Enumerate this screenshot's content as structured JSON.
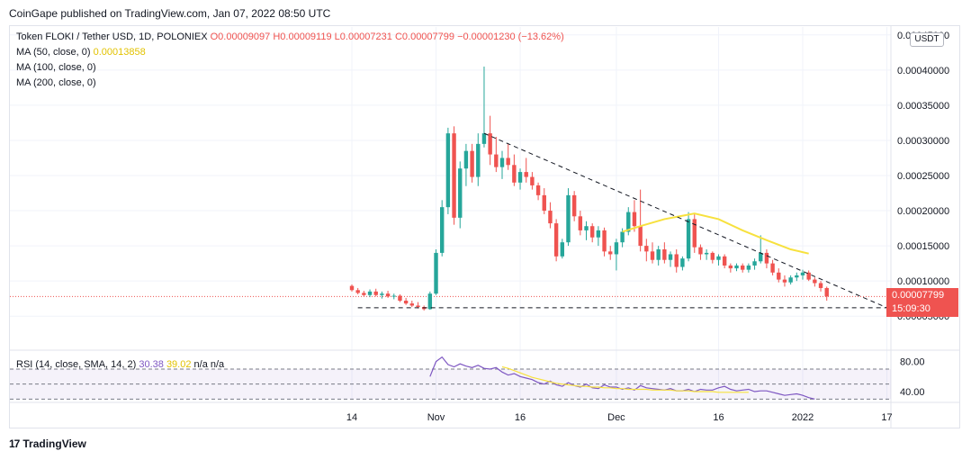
{
  "header": {
    "published": "CoinGape published on TradingView.com, Jan 07, 2022 08:50 UTC"
  },
  "legend": {
    "symbol": "Token FLOKI / Tether USD, 1D, POLONIEX",
    "open": "O0.00009097",
    "high": "H0.00009119",
    "low": "L0.00007231",
    "close": "C0.00007799",
    "change": "−0.00001230 (−13.62%)",
    "ma50_label": "MA (50, close, 0)",
    "ma50_value": "0.00013858",
    "ma100_label": "MA (100, close, 0)",
    "ma200_label": "MA (200, close, 0)",
    "rsi_label": "RSI (14, close, SMA, 14, 2)",
    "rsi_value": "30.38",
    "rsi_sma_value": "39.02",
    "rsi_na": "n/a  n/a"
  },
  "currency_button": "USDT",
  "price_tag": {
    "price": "0.00007799",
    "countdown": "15:09:30"
  },
  "footer": {
    "brand": "TradingView",
    "logo_mark": "17"
  },
  "colors": {
    "up": "#26a69a",
    "down": "#ef5350",
    "ma50": "#f7e13e",
    "rsi": "#7e57c2",
    "rsi_sma": "#f7e13e"
  },
  "chart_data": [
    {
      "type": "candlestick",
      "title": "Token FLOKI / Tether USD, 1D, POLONIEX",
      "y_ticks": [
        "0.00045000",
        "0.00040000",
        "0.00035000",
        "0.00030000",
        "0.00025000",
        "0.00020000",
        "0.00015000",
        "0.00010000",
        "0.00005000"
      ],
      "y_tick_values": [
        0.00045,
        0.0004,
        0.00035,
        0.0003,
        0.00025,
        0.0002,
        0.00015,
        0.0001,
        5e-05
      ],
      "ylim": [
        4e-05,
        0.00046
      ],
      "x_ticks": [
        "14",
        "Nov",
        "16",
        "Dec",
        "16",
        "2022",
        "17"
      ],
      "x_tick_index": [
        0,
        14,
        28,
        44,
        61,
        75,
        89
      ],
      "last_price": 7.799e-05,
      "candles": [
        [
          9.3e-05,
          9.5e-05,
          8.5e-05,
          8.7e-05
        ],
        [
          8.7e-05,
          9e-05,
          8.1e-05,
          8.3e-05
        ],
        [
          8.3e-05,
          8.6e-05,
          7.8e-05,
          8e-05
        ],
        [
          8e-05,
          8.8e-05,
          7.7e-05,
          8.5e-05
        ],
        [
          8.5e-05,
          8.9e-05,
          7.8e-05,
          8e-05
        ],
        [
          8e-05,
          8.5e-05,
          7.5e-05,
          8.2e-05
        ],
        [
          8.2e-05,
          8.6e-05,
          7.6e-05,
          7.8e-05
        ],
        [
          7.8e-05,
          8.2e-05,
          7.4e-05,
          7.9e-05
        ],
        [
          7.9e-05,
          8.1e-05,
          7e-05,
          7.2e-05
        ],
        [
          7.2e-05,
          7.6e-05,
          6.6e-05,
          6.8e-05
        ],
        [
          6.8e-05,
          7.2e-05,
          6.3e-05,
          6.5e-05
        ],
        [
          6.5e-05,
          7e-05,
          6.1e-05,
          6.3e-05
        ],
        [
          6.3e-05,
          6.5e-05,
          5.8e-05,
          6e-05
        ],
        [
          6e-05,
          8.5e-05,
          5.9e-05,
          8.2e-05
        ],
        [
          8.2e-05,
          0.000145,
          8e-05,
          0.00014
        ],
        [
          0.00014,
          0.000215,
          0.000135,
          0.000205
        ],
        [
          0.000205,
          0.000318,
          0.000195,
          0.00031
        ],
        [
          0.00031,
          0.00032,
          0.00018,
          0.00019
        ],
        [
          0.00019,
          0.00027,
          0.000175,
          0.00026
        ],
        [
          0.00026,
          0.000295,
          0.000235,
          0.000285
        ],
        [
          0.000285,
          0.000295,
          0.00024,
          0.000248
        ],
        [
          0.000248,
          0.00031,
          0.000235,
          0.000295
        ],
        [
          0.000295,
          0.000405,
          0.00029,
          0.00031
        ],
        [
          0.00031,
          0.000335,
          0.000265,
          0.00028
        ],
        [
          0.00028,
          0.000305,
          0.000255,
          0.000262
        ],
        [
          0.000262,
          0.000285,
          0.000245,
          0.000275
        ],
        [
          0.000275,
          0.000295,
          0.000258,
          0.000265
        ],
        [
          0.000265,
          0.00028,
          0.000235,
          0.00024
        ],
        [
          0.00024,
          0.00026,
          0.00023,
          0.000255
        ],
        [
          0.000255,
          0.000275,
          0.00024,
          0.000248
        ],
        [
          0.000248,
          0.000255,
          0.00023,
          0.000236
        ],
        [
          0.000236,
          0.00024,
          0.000215,
          0.000222
        ],
        [
          0.000222,
          0.000232,
          0.000195,
          0.0002
        ],
        [
          0.0002,
          0.000212,
          0.000175,
          0.000182
        ],
        [
          0.000182,
          0.000188,
          0.000128,
          0.000135
        ],
        [
          0.000135,
          0.00016,
          0.000132,
          0.000155
        ],
        [
          0.000155,
          0.000232,
          0.00015,
          0.000222
        ],
        [
          0.000222,
          0.000228,
          0.000185,
          0.000192
        ],
        [
          0.000192,
          0.0002,
          0.000165,
          0.000172
        ],
        [
          0.000172,
          0.000185,
          0.000158,
          0.000178
        ],
        [
          0.000178,
          0.000182,
          0.000155,
          0.000162
        ],
        [
          0.000162,
          0.000178,
          0.00015,
          0.000172
        ],
        [
          0.000172,
          0.000176,
          0.000135,
          0.000142
        ],
        [
          0.000142,
          0.00015,
          0.00013,
          0.000138
        ],
        [
          0.000138,
          0.00016,
          0.000115,
          0.000155
        ],
        [
          0.000155,
          0.000175,
          0.000148,
          0.00017
        ],
        [
          0.00017,
          0.000205,
          0.000165,
          0.000198
        ],
        [
          0.000198,
          0.000215,
          0.00017,
          0.000178
        ],
        [
          0.000178,
          0.00023,
          0.000142,
          0.00015
        ],
        [
          0.00015,
          0.00016,
          0.000128,
          0.000142
        ],
        [
          0.000142,
          0.000155,
          0.000125,
          0.00013
        ],
        [
          0.00013,
          0.00015,
          0.000122,
          0.000145
        ],
        [
          0.000145,
          0.000155,
          0.000125,
          0.00013
        ],
        [
          0.00013,
          0.000142,
          0.00012,
          0.000138
        ],
        [
          0.000138,
          0.000145,
          0.000112,
          0.00012
        ],
        [
          0.00012,
          0.000135,
          0.000115,
          0.000132
        ],
        [
          0.000132,
          0.000198,
          0.000128,
          0.000188
        ],
        [
          0.000188,
          0.000195,
          0.00014,
          0.000148
        ],
        [
          0.000148,
          0.000152,
          0.00013,
          0.000138
        ],
        [
          0.000138,
          0.000145,
          0.00013,
          0.00014
        ],
        [
          0.00014,
          0.000142,
          0.000125,
          0.00013
        ],
        [
          0.00013,
          0.000138,
          0.000122,
          0.000135
        ],
        [
          0.000135,
          0.000138,
          0.000118,
          0.000122
        ],
        [
          0.000122,
          0.000125,
          0.000112,
          0.000118
        ],
        [
          0.000118,
          0.000125,
          0.000114,
          0.000122
        ],
        [
          0.000122,
          0.000125,
          0.000112,
          0.000116
        ],
        [
          0.000116,
          0.000125,
          0.000112,
          0.000122
        ],
        [
          0.000122,
          0.000132,
          0.000116,
          0.000128
        ],
        [
          0.000128,
          0.000165,
          0.000125,
          0.00014
        ],
        [
          0.00014,
          0.000145,
          0.000118,
          0.000125
        ],
        [
          0.000125,
          0.00013,
          0.000108,
          0.000112
        ],
        [
          0.000112,
          0.000118,
          9.8e-05,
          0.000102
        ],
        [
          0.000102,
          0.000108,
          9.2e-05,
          9.8e-05
        ],
        [
          9.8e-05,
          0.000108,
          9.5e-05,
          0.000105
        ],
        [
          0.000105,
          0.000112,
          0.0001,
          0.000108
        ],
        [
          0.000108,
          0.000116,
          0.000102,
          0.000112
        ],
        [
          0.000112,
          0.000115,
          0.0001,
          0.000102
        ],
        [
          0.000102,
          0.000105,
          9.2e-05,
          9.7e-05
        ],
        [
          9.7e-05,
          0.0001,
          8.5e-05,
          9e-05
        ],
        [
          9e-05,
          9.2e-05,
          7.2e-05,
          7.8e-05
        ]
      ],
      "ma50": [
        [
          45,
          0.00017
        ],
        [
          48,
          0.000178
        ],
        [
          52,
          0.000188
        ],
        [
          57,
          0.000196
        ],
        [
          61,
          0.000188
        ],
        [
          65,
          0.000172
        ],
        [
          69,
          0.000158
        ],
        [
          73,
          0.000145
        ],
        [
          76,
          0.000139
        ]
      ],
      "trendlines": [
        {
          "from": [
            22,
            0.00031
          ],
          "to": [
            89,
            6.2e-05
          ],
          "style": "dashed"
        },
        {
          "from": [
            1,
            6.2e-05
          ],
          "to": [
            91,
            6.2e-05
          ],
          "style": "dashed"
        }
      ]
    },
    {
      "type": "line",
      "title": "RSI (14, close, SMA, 14, 2)",
      "y_ticks": [
        "80.00",
        "40.00"
      ],
      "y_tick_values": [
        80,
        40
      ],
      "ylim": [
        28,
        88
      ],
      "bands": [
        70,
        50,
        30
      ],
      "series": [
        {
          "name": "RSI",
          "x_start": 13,
          "values": [
            60,
            80,
            86,
            76,
            73,
            77,
            74,
            72,
            75,
            71,
            70,
            72,
            66,
            62,
            64,
            60,
            58,
            56,
            52,
            50,
            54,
            49,
            47,
            52,
            48,
            46,
            50,
            45,
            44,
            49,
            46,
            46,
            43,
            45,
            42,
            48,
            45,
            44,
            43,
            42,
            44,
            41,
            41,
            43,
            40,
            43,
            42,
            42,
            45,
            47,
            43,
            41,
            42,
            43,
            40,
            41,
            41,
            39,
            37,
            35,
            36,
            37,
            35,
            32,
            30
          ]
        },
        {
          "name": "RSI SMA",
          "x_start": 25,
          "values": [
            73,
            71,
            68,
            65,
            62,
            59,
            57,
            55,
            53,
            51,
            50,
            49,
            48,
            47,
            47,
            46,
            46,
            45,
            45,
            44,
            44,
            43,
            43,
            43,
            43,
            42,
            42,
            42,
            42,
            41,
            41,
            41,
            40,
            40,
            40,
            40,
            39,
            39,
            39,
            39,
            39,
            39
          ]
        }
      ]
    }
  ]
}
